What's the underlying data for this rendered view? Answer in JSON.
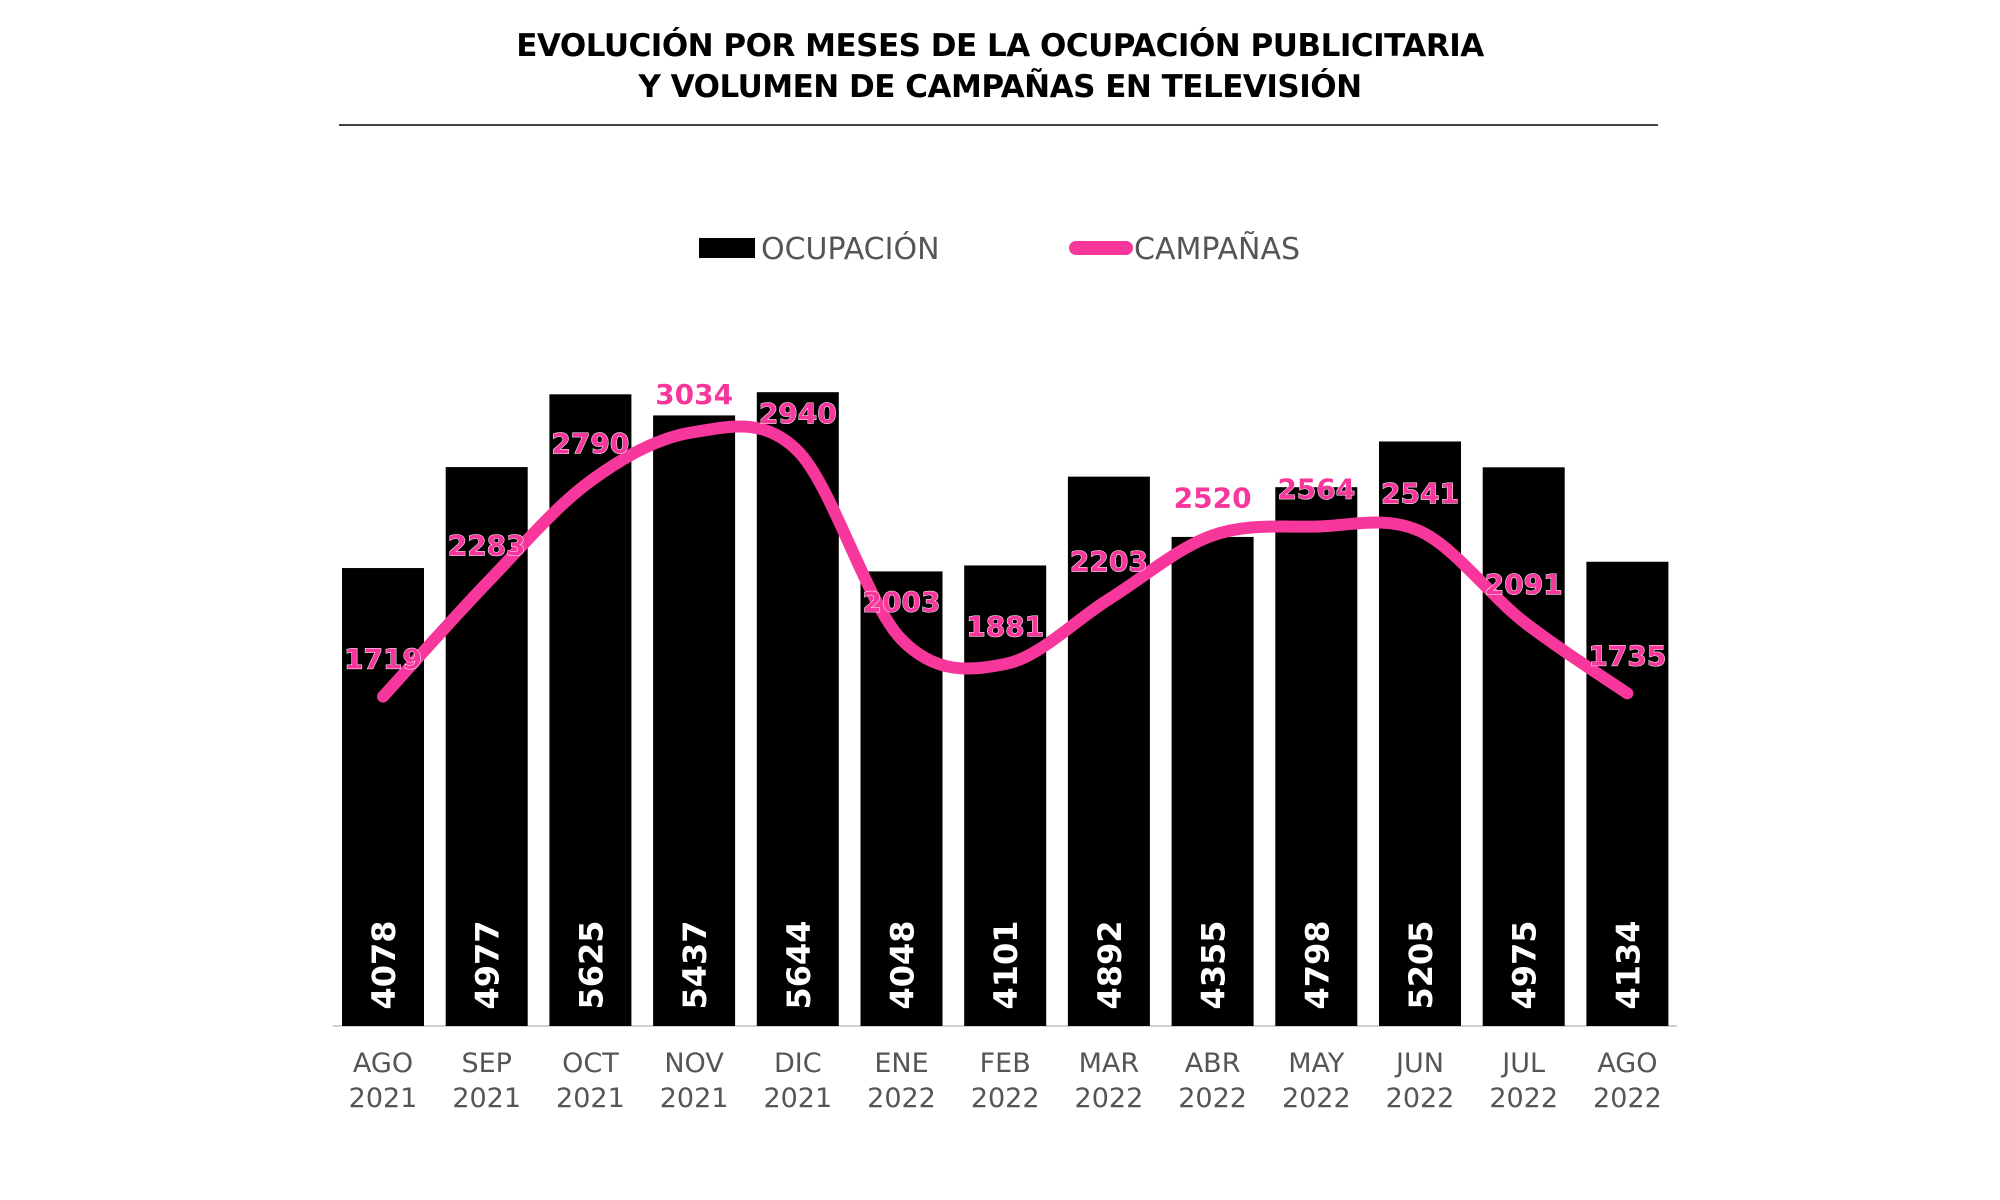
{
  "chart_data": {
    "type": "bar+line",
    "title": "EVOLUCIÓN POR MESES DE LA OCUPACIÓN PUBLICITARIA\nY VOLUMEN DE CAMPAÑAS EN TELEVISIÓN",
    "title_lines": [
      "EVOLUCIÓN POR MESES DE LA OCUPACIÓN PUBLICITARIA",
      "Y VOLUMEN DE CAMPAÑAS EN TELEVISIÓN"
    ],
    "legend_position": "top-center",
    "grid": false,
    "categories": [
      [
        "AGO",
        "2021"
      ],
      [
        "SEP",
        "2021"
      ],
      [
        "OCT",
        "2021"
      ],
      [
        "NOV",
        "2021"
      ],
      [
        "DIC",
        "2021"
      ],
      [
        "ENE",
        "2022"
      ],
      [
        "FEB",
        "2022"
      ],
      [
        "MAR",
        "2022"
      ],
      [
        "ABR",
        "2022"
      ],
      [
        "MAY",
        "2022"
      ],
      [
        "JUN",
        "2022"
      ],
      [
        "JUL",
        "2022"
      ],
      [
        "AGO",
        "2022"
      ]
    ],
    "series": [
      {
        "name": "OCUPACIÓN",
        "kind": "bar",
        "color": "#000000",
        "values": [
          4078,
          4977,
          5625,
          5437,
          5644,
          4048,
          4101,
          4892,
          4355,
          4798,
          5205,
          4975,
          4134
        ]
      },
      {
        "name": "CAMPAÑAS",
        "kind": "line",
        "smooth": true,
        "secondary_axis": true,
        "color": "#f7379b",
        "values": [
          1719,
          2283,
          2790,
          3034,
          2940,
          2003,
          1881,
          2203,
          2520,
          2564,
          2541,
          2091,
          1735
        ]
      }
    ]
  }
}
